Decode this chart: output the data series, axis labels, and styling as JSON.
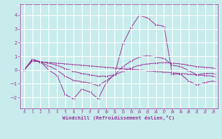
{
  "background_color": "#c8ecec",
  "grid_color": "#ffffff",
  "line_color": "#993399",
  "marker_color": "#993399",
  "xlabel": "Windchill (Refroidissement éolien,°C)",
  "xlabel_color": "#993399",
  "tick_color": "#993399",
  "xlim": [
    -0.5,
    23.5
  ],
  "ylim": [
    -2.8,
    4.8
  ],
  "yticks": [
    -2,
    -1,
    0,
    1,
    2,
    3,
    4
  ],
  "xticks": [
    0,
    1,
    2,
    3,
    4,
    5,
    6,
    7,
    8,
    9,
    10,
    11,
    12,
    13,
    14,
    15,
    16,
    17,
    18,
    19,
    20,
    21,
    22,
    23
  ],
  "series": [
    {
      "x": [
        0,
        1,
        2,
        3,
        4,
        5,
        6,
        7,
        8,
        9,
        10,
        11,
        12,
        13,
        14,
        15,
        16,
        17,
        18,
        19,
        20,
        21,
        22,
        23
      ],
      "y": [
        0.0,
        0.8,
        0.6,
        0.0,
        -0.4,
        -1.8,
        -2.1,
        -1.4,
        -1.6,
        -2.1,
        -0.9,
        -0.3,
        1.9,
        3.1,
        4.0,
        3.8,
        3.3,
        3.2,
        -0.3,
        -0.3,
        -0.8,
        -1.1,
        -0.9,
        -0.8
      ]
    },
    {
      "x": [
        0,
        1,
        2,
        3,
        4,
        5,
        6,
        7,
        8,
        9,
        10,
        11,
        12,
        13,
        14,
        15,
        16,
        17,
        18,
        19,
        20,
        21,
        22,
        23
      ],
      "y": [
        0.0,
        0.65,
        0.6,
        0.55,
        0.5,
        0.45,
        0.4,
        0.35,
        0.3,
        0.25,
        0.2,
        0.15,
        0.1,
        0.05,
        0.0,
        -0.05,
        -0.1,
        -0.15,
        -0.2,
        -0.25,
        -0.3,
        -0.35,
        -0.4,
        -0.45
      ]
    },
    {
      "x": [
        0,
        1,
        2,
        3,
        4,
        5,
        6,
        7,
        8,
        9,
        10,
        11,
        12,
        13,
        14,
        15,
        16,
        17,
        18,
        19,
        20,
        21,
        22,
        23
      ],
      "y": [
        0.0,
        0.7,
        0.6,
        0.5,
        0.35,
        0.1,
        -0.1,
        -0.25,
        -0.35,
        -0.45,
        -0.45,
        -0.35,
        -0.1,
        0.15,
        0.35,
        0.45,
        0.5,
        0.55,
        0.5,
        0.45,
        0.35,
        0.25,
        0.2,
        0.15
      ]
    },
    {
      "x": [
        0,
        1,
        2,
        3,
        4,
        5,
        6,
        7,
        8,
        9,
        10,
        11,
        12,
        13,
        14,
        15,
        16,
        17,
        18,
        19,
        20,
        21,
        22,
        23
      ],
      "y": [
        0.0,
        0.75,
        0.55,
        0.3,
        0.0,
        -0.45,
        -0.75,
        -0.85,
        -0.95,
        -1.15,
        -0.75,
        -0.35,
        0.25,
        0.65,
        0.95,
        1.05,
        0.95,
        0.85,
        0.35,
        0.25,
        -0.05,
        -0.35,
        -0.25,
        -0.25
      ]
    }
  ]
}
